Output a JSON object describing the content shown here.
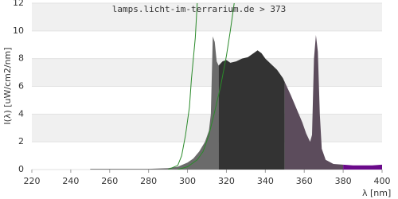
{
  "chart_data": {
    "type": "area",
    "title": "lamps.licht-im-terrarium.de > 373",
    "x_label": "λ [nm]",
    "y_label": "I(λ) [uW/cm2/nm]",
    "xlim": [
      220,
      400
    ],
    "xticks": [
      220,
      240,
      260,
      280,
      300,
      320,
      340,
      360,
      380,
      400
    ],
    "ylim": [
      0,
      12
    ],
    "yticks": [
      0,
      2,
      4,
      6,
      8,
      10,
      12
    ],
    "grid": true,
    "series": [
      {
        "type": "area",
        "color": "#6b6b6b",
        "x": [
          250,
          260,
          270,
          280,
          290,
          295,
          300,
          303,
          306,
          309,
          311,
          312,
          313,
          314,
          315,
          316
        ],
        "values": [
          0.05,
          0.05,
          0.05,
          0.05,
          0.1,
          0.2,
          0.5,
          0.8,
          1.3,
          2.0,
          2.8,
          4.0,
          9.6,
          9.2,
          7.8,
          7.5
        ]
      },
      {
        "type": "area",
        "color": "#333333",
        "x": [
          316,
          318,
          320,
          322,
          325,
          328,
          331,
          334,
          336,
          338,
          340,
          343,
          346,
          349,
          350
        ],
        "values": [
          7.5,
          7.8,
          7.9,
          7.7,
          7.8,
          8.0,
          8.1,
          8.4,
          8.6,
          8.4,
          8.0,
          7.6,
          7.2,
          6.6,
          6.3
        ]
      },
      {
        "type": "area",
        "color": "#5c4c5c",
        "x": [
          350,
          353,
          356,
          359,
          361,
          363,
          364,
          365,
          366,
          367,
          368,
          369,
          371,
          375,
          380
        ],
        "values": [
          6.3,
          5.4,
          4.4,
          3.4,
          2.6,
          2.0,
          2.5,
          8.0,
          9.7,
          8.5,
          4.0,
          1.5,
          0.7,
          0.4,
          0.35
        ]
      },
      {
        "type": "area",
        "color": "#6a0a8a",
        "x": [
          380,
          385,
          390,
          395,
          400
        ],
        "values": [
          0.35,
          0.3,
          0.3,
          0.3,
          0.35
        ]
      },
      {
        "type": "line",
        "color": "#2a8a2a",
        "x": [
          290,
          295,
          297,
          299,
          301,
          302,
          304,
          305
        ],
        "values": [
          0,
          0.3,
          1,
          2.5,
          4.5,
          6.5,
          9.5,
          12
        ]
      },
      {
        "type": "line",
        "color": "#2a8a2a",
        "x": [
          295,
          300,
          305,
          308,
          311,
          314,
          317,
          320,
          322,
          324
        ],
        "values": [
          0,
          0.2,
          0.7,
          1.3,
          2.5,
          4.2,
          6,
          8.2,
          10,
          12
        ]
      }
    ]
  }
}
